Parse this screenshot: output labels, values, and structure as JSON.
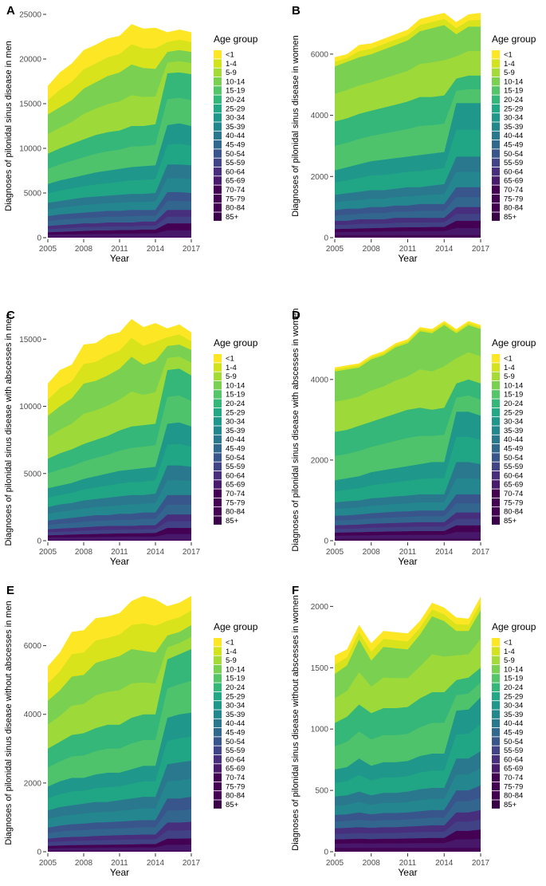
{
  "legend": {
    "title": "Age group",
    "entries": [
      "<1",
      "1-4",
      "5-9",
      "10-14",
      "15-19",
      "20-24",
      "25-29",
      "30-34",
      "35-39",
      "40-44",
      "45-49",
      "50-54",
      "55-59",
      "60-64",
      "65-69",
      "70-74",
      "75-79",
      "80-84",
      "85+"
    ],
    "colors": [
      "#FDE725",
      "#D2E21B",
      "#A5DB36",
      "#7AD151",
      "#54C568",
      "#35B779",
      "#22A884",
      "#1F988B",
      "#23888E",
      "#2A788E",
      "#31688E",
      "#39568C",
      "#414487",
      "#472F7D",
      "#481B6D",
      "#440154",
      "#440154",
      "#440154",
      "#3A0149"
    ],
    "placement": "right"
  },
  "chart_data": [
    {
      "type": "area",
      "panel_label": "A",
      "xlabel": "Year",
      "ylabel": "Diagnoses of pilonidal sinus disease in men",
      "x": [
        2005,
        2006,
        2007,
        2008,
        2009,
        2010,
        2011,
        2012,
        2013,
        2014,
        2015,
        2016,
        2017
      ],
      "xticks": [
        2005,
        2008,
        2011,
        2014,
        2017
      ],
      "yticks": [
        0,
        5000,
        10000,
        15000,
        20000,
        25000
      ],
      "ylim": [
        0,
        25000
      ],
      "totals": [
        17000,
        18500,
        19500,
        21000,
        21600,
        22300,
        22600,
        23900,
        23400,
        23500,
        23000,
        23300,
        23000
      ],
      "boundaries": {
        "10-14": [
          13800,
          14600,
          15400,
          16700,
          17400,
          18100,
          18500,
          19400,
          19000,
          18900,
          20800,
          21000,
          20800
        ],
        "20-24": [
          9400,
          10000,
          10500,
          11000,
          11500,
          11800,
          12000,
          12500,
          12500,
          12700,
          18400,
          18500,
          18300
        ],
        "30-34": [
          6000,
          6400,
          6700,
          7000,
          7300,
          7500,
          7700,
          7900,
          8000,
          8100,
          12600,
          12800,
          12500
        ],
        "40-44": [
          3900,
          4100,
          4300,
          4500,
          4600,
          4700,
          4800,
          4900,
          4900,
          5000,
          8200,
          8200,
          8100
        ],
        "50-54": [
          2400,
          2600,
          2700,
          2800,
          2900,
          3000,
          3000,
          3100,
          3100,
          3100,
          5100,
          5100,
          5000
        ],
        "60-64": [
          1300,
          1400,
          1500,
          1600,
          1600,
          1700,
          1700,
          1700,
          1800,
          1800,
          3100,
          3100,
          3100
        ],
        "70-74": [
          600,
          650,
          700,
          750,
          800,
          800,
          850,
          850,
          900,
          900,
          1600,
          1600,
          1600
        ],
        "85+": [
          60,
          60,
          60,
          60,
          60,
          60,
          60,
          60,
          60,
          60,
          60,
          60,
          60
        ]
      }
    },
    {
      "type": "area",
      "panel_label": "B",
      "xlabel": "Year",
      "ylabel": "Diagnoses of pilonidal sinus disease in women",
      "x": [
        2005,
        2006,
        2007,
        2008,
        2009,
        2010,
        2011,
        2012,
        2013,
        2014,
        2015,
        2016,
        2017
      ],
      "xticks": [
        2005,
        2008,
        2011,
        2014,
        2017
      ],
      "yticks": [
        0,
        2000,
        4000,
        6000
      ],
      "ylim": [
        0,
        7300
      ],
      "totals": [
        5900,
        6000,
        6300,
        6350,
        6500,
        6650,
        6800,
        7150,
        7250,
        7350,
        7050,
        7300,
        7350
      ],
      "boundaries": {
        "10-14": [
          5600,
          5750,
          5900,
          6000,
          6150,
          6300,
          6450,
          6750,
          6850,
          6950,
          6650,
          6900,
          6900
        ],
        "20-24": [
          3800,
          3900,
          4050,
          4150,
          4250,
          4350,
          4450,
          4600,
          4600,
          4650,
          5200,
          5300,
          5300
        ],
        "30-34": [
          2200,
          2300,
          2400,
          2500,
          2550,
          2600,
          2650,
          2700,
          2750,
          2800,
          4400,
          4400,
          4400
        ],
        "40-44": [
          1400,
          1450,
          1500,
          1550,
          1550,
          1600,
          1650,
          1650,
          1700,
          1750,
          2650,
          2650,
          2650
        ],
        "50-54": [
          900,
          950,
          950,
          1000,
          1000,
          1050,
          1050,
          1100,
          1100,
          1100,
          1650,
          1650,
          1650
        ],
        "60-64": [
          550,
          550,
          600,
          600,
          600,
          650,
          650,
          650,
          650,
          650,
          1000,
          1000,
          1000
        ],
        "70-74": [
          280,
          290,
          300,
          310,
          320,
          330,
          340,
          340,
          350,
          350,
          550,
          550,
          550
        ],
        "85+": [
          80,
          80,
          80,
          80,
          80,
          80,
          80,
          80,
          80,
          80,
          80,
          80,
          80
        ]
      }
    },
    {
      "type": "area",
      "panel_label": "C",
      "xlabel": "Year",
      "ylabel": "Diagnoses of pilonidal sinus disease with abscesses in men",
      "x": [
        2005,
        2006,
        2007,
        2008,
        2009,
        2010,
        2011,
        2012,
        2013,
        2014,
        2015,
        2016,
        2017
      ],
      "xticks": [
        2005,
        2008,
        2011,
        2014,
        2017
      ],
      "yticks": [
        0,
        5000,
        10000,
        15000
      ],
      "ylim": [
        0,
        16500
      ],
      "totals": [
        11700,
        12700,
        13100,
        14600,
        14700,
        15300,
        15500,
        16500,
        15900,
        16200,
        15800,
        16100,
        15500
      ],
      "boundaries": {
        "10-14": [
          9300,
          10000,
          10600,
          11700,
          11900,
          12300,
          12800,
          13700,
          13100,
          13400,
          14500,
          14600,
          14200
        ],
        "20-24": [
          6100,
          6500,
          6800,
          7200,
          7500,
          7800,
          8200,
          8500,
          8600,
          8700,
          12700,
          12800,
          12300
        ],
        "30-34": [
          3900,
          4100,
          4300,
          4600,
          4800,
          5000,
          5200,
          5300,
          5400,
          5500,
          8700,
          8800,
          8500
        ],
        "40-44": [
          2500,
          2700,
          2800,
          3000,
          3100,
          3200,
          3300,
          3400,
          3400,
          3500,
          5600,
          5600,
          5500
        ],
        "50-54": [
          1500,
          1600,
          1700,
          1800,
          1900,
          1900,
          2000,
          2000,
          2100,
          2100,
          3400,
          3400,
          3400
        ],
        "60-64": [
          850,
          900,
          950,
          1000,
          1050,
          1100,
          1100,
          1100,
          1150,
          1150,
          1950,
          1950,
          1950
        ],
        "70-74": [
          400,
          420,
          450,
          480,
          500,
          520,
          540,
          550,
          560,
          570,
          950,
          950,
          950
        ],
        "85+": [
          50,
          50,
          50,
          50,
          50,
          50,
          50,
          50,
          50,
          50,
          50,
          50,
          50
        ]
      }
    },
    {
      "type": "area",
      "panel_label": "D",
      "xlabel": "Year",
      "ylabel": "Diagnoses of pilonidal sinus disease with abscesses in women",
      "x": [
        2005,
        2006,
        2007,
        2008,
        2009,
        2010,
        2011,
        2012,
        2013,
        2014,
        2015,
        2016,
        2017
      ],
      "xticks": [
        2005,
        2008,
        2011,
        2014,
        2017
      ],
      "yticks": [
        0,
        2000,
        4000
      ],
      "ylim": [
        0,
        5500
      ],
      "totals": [
        4300,
        4350,
        4400,
        4600,
        4700,
        4900,
        5000,
        5300,
        5250,
        5450,
        5250,
        5450,
        5350
      ],
      "boundaries": {
        "10-14": [
          4200,
          4250,
          4300,
          4500,
          4600,
          4800,
          4900,
          5200,
          5150,
          5350,
          5150,
          5350,
          5250
        ],
        "20-24": [
          2700,
          2750,
          2850,
          2950,
          3050,
          3150,
          3250,
          3300,
          3250,
          3300,
          3900,
          4000,
          3900
        ],
        "30-34": [
          1500,
          1550,
          1600,
          1700,
          1750,
          1800,
          1850,
          1900,
          1950,
          1950,
          3200,
          3200,
          3100
        ],
        "40-44": [
          950,
          980,
          1000,
          1050,
          1070,
          1100,
          1120,
          1150,
          1150,
          1150,
          1950,
          1950,
          1900
        ],
        "50-54": [
          620,
          630,
          650,
          680,
          700,
          720,
          730,
          750,
          750,
          750,
          1150,
          1150,
          1150
        ],
        "60-64": [
          380,
          390,
          400,
          420,
          430,
          440,
          450,
          460,
          460,
          460,
          700,
          700,
          700
        ],
        "70-74": [
          200,
          205,
          210,
          220,
          225,
          230,
          235,
          240,
          240,
          240,
          380,
          380,
          380
        ],
        "85+": [
          50,
          50,
          50,
          50,
          50,
          50,
          50,
          50,
          50,
          50,
          50,
          50,
          50
        ]
      }
    },
    {
      "type": "area",
      "panel_label": "E",
      "xlabel": "Year",
      "ylabel": "Diagnoses of pilonidal sinus disease without abscesses in men",
      "x": [
        2005,
        2006,
        2007,
        2008,
        2009,
        2010,
        2011,
        2012,
        2013,
        2014,
        2015,
        2016,
        2017
      ],
      "xticks": [
        2005,
        2008,
        2011,
        2014,
        2017
      ],
      "yticks": [
        0,
        2000,
        4000,
        6000
      ],
      "ylim": [
        0,
        7500
      ],
      "totals": [
        5400,
        5800,
        6400,
        6450,
        6800,
        6850,
        6950,
        7300,
        7450,
        7350,
        7150,
        7250,
        7450
      ],
      "boundaries": {
        "10-14": [
          4400,
          4700,
          5100,
          5150,
          5500,
          5600,
          5700,
          5900,
          5850,
          5800,
          6300,
          6400,
          6600
        ],
        "20-24": [
          3000,
          3200,
          3400,
          3450,
          3600,
          3700,
          3700,
          3900,
          4000,
          4000,
          5600,
          5750,
          5900
        ],
        "30-34": [
          1900,
          2050,
          2150,
          2150,
          2250,
          2300,
          2300,
          2400,
          2500,
          2500,
          3900,
          4000,
          4050
        ],
        "40-44": [
          1200,
          1300,
          1350,
          1400,
          1450,
          1450,
          1500,
          1550,
          1600,
          1600,
          2550,
          2600,
          2650
        ],
        "50-54": [
          700,
          760,
          800,
          820,
          850,
          860,
          880,
          900,
          920,
          920,
          1550,
          1550,
          1600
        ],
        "60-64": [
          380,
          410,
          430,
          440,
          460,
          470,
          480,
          490,
          500,
          500,
          850,
          850,
          870
        ],
        "70-74": [
          170,
          180,
          190,
          195,
          200,
          205,
          210,
          215,
          220,
          220,
          380,
          380,
          390
        ],
        "85+": [
          30,
          30,
          30,
          30,
          30,
          30,
          30,
          30,
          30,
          30,
          30,
          30,
          30
        ]
      }
    },
    {
      "type": "area",
      "panel_label": "F",
      "xlabel": "Year",
      "ylabel": "Diagnoses of pilonidal sinus disease without abscesses in women",
      "x": [
        2005,
        2006,
        2007,
        2008,
        2009,
        2010,
        2011,
        2012,
        2013,
        2014,
        2015,
        2016,
        2017
      ],
      "xticks": [
        2005,
        2008,
        2011,
        2014,
        2017
      ],
      "yticks": [
        0,
        500,
        1000,
        1500,
        2000
      ],
      "ylim": [
        0,
        2100
      ],
      "totals": [
        1600,
        1650,
        1850,
        1700,
        1800,
        1790,
        1780,
        1880,
        2030,
        1990,
        1910,
        1900,
        2080
      ],
      "boundaries": {
        "10-14": [
          1450,
          1520,
          1730,
          1560,
          1670,
          1660,
          1650,
          1770,
          1920,
          1880,
          1800,
          1800,
          1970
        ],
        "20-24": [
          1050,
          1100,
          1200,
          1130,
          1170,
          1170,
          1180,
          1250,
          1300,
          1300,
          1400,
          1420,
          1500
        ],
        "30-34": [
          670,
          690,
          760,
          700,
          730,
          730,
          740,
          780,
          800,
          800,
          1150,
          1160,
          1260
        ],
        "40-44": [
          450,
          460,
          490,
          460,
          480,
          480,
          490,
          510,
          520,
          520,
          760,
          760,
          820
        ],
        "50-54": [
          300,
          305,
          320,
          305,
          315,
          315,
          320,
          330,
          340,
          340,
          500,
          500,
          540
        ],
        "60-64": [
          190,
          195,
          200,
          195,
          200,
          200,
          205,
          210,
          215,
          215,
          320,
          320,
          340
        ],
        "70-74": [
          100,
          102,
          105,
          102,
          105,
          105,
          108,
          110,
          112,
          112,
          170,
          170,
          180
        ],
        "85+": [
          30,
          30,
          30,
          30,
          30,
          30,
          30,
          30,
          30,
          30,
          30,
          30,
          30
        ]
      }
    }
  ]
}
